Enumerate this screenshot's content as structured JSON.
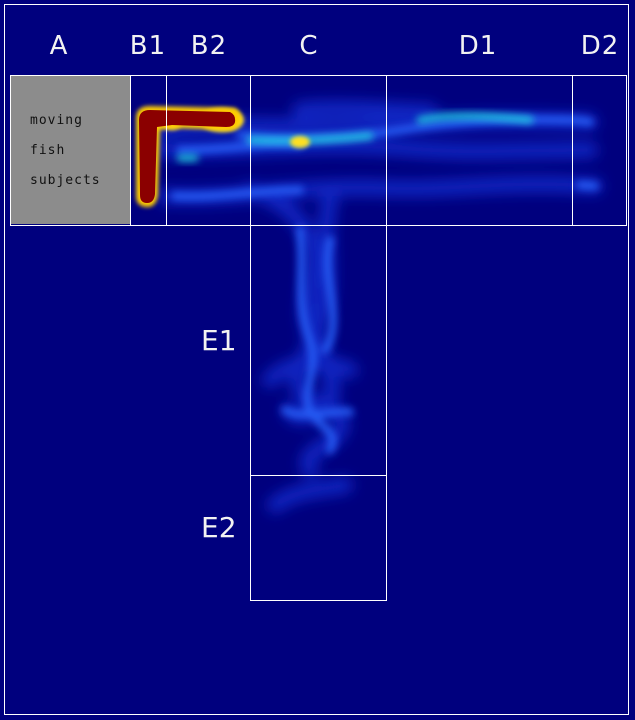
{
  "zones": {
    "A": "A",
    "B1": "B1",
    "B2": "B2",
    "C": "C",
    "D1": "D1",
    "D2": "D2",
    "E1": "E1",
    "E2": "E2"
  },
  "start_area": {
    "line1": "moving",
    "line2": "fish",
    "line3": "subjects"
  },
  "colors": {
    "background": "#00007e",
    "outline": "#ffffff",
    "start_area": "#8c8c8c",
    "heat_high": "#8b0000",
    "heat_mid": "#ffff00",
    "heat_low": "#1a3cff"
  }
}
